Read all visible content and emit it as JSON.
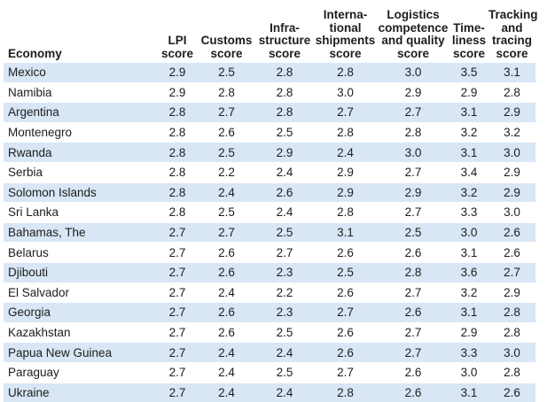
{
  "table": {
    "headers": [
      [
        "Economy"
      ],
      [
        "LPI",
        "score"
      ],
      [
        "Customs",
        "score"
      ],
      [
        "Infra-",
        "structure",
        "score"
      ],
      [
        "Interna-",
        "tional",
        "shipments",
        "score"
      ],
      [
        "Logistics",
        "competence",
        "and quality",
        "score"
      ],
      [
        "Time-",
        "liness",
        "score"
      ],
      [
        "Tracking",
        "and",
        "tracing",
        "score"
      ]
    ],
    "rows": [
      [
        "Mexico",
        "2.9",
        "2.5",
        "2.8",
        "2.8",
        "3.0",
        "3.5",
        "3.1"
      ],
      [
        "Namibia",
        "2.9",
        "2.8",
        "2.8",
        "3.0",
        "2.9",
        "2.9",
        "2.8"
      ],
      [
        "Argentina",
        "2.8",
        "2.7",
        "2.8",
        "2.7",
        "2.7",
        "3.1",
        "2.9"
      ],
      [
        "Montenegro",
        "2.8",
        "2.6",
        "2.5",
        "2.8",
        "2.8",
        "3.2",
        "3.2"
      ],
      [
        "Rwanda",
        "2.8",
        "2.5",
        "2.9",
        "2.4",
        "3.0",
        "3.1",
        "3.0"
      ],
      [
        "Serbia",
        "2.8",
        "2.2",
        "2.4",
        "2.9",
        "2.7",
        "3.4",
        "2.9"
      ],
      [
        "Solomon Islands",
        "2.8",
        "2.4",
        "2.6",
        "2.9",
        "2.9",
        "3.2",
        "2.9"
      ],
      [
        "Sri Lanka",
        "2.8",
        "2.5",
        "2.4",
        "2.8",
        "2.7",
        "3.3",
        "3.0"
      ],
      [
        "Bahamas, The",
        "2.7",
        "2.7",
        "2.5",
        "3.1",
        "2.5",
        "3.0",
        "2.6"
      ],
      [
        "Belarus",
        "2.7",
        "2.6",
        "2.7",
        "2.6",
        "2.6",
        "3.1",
        "2.6"
      ],
      [
        "Djibouti",
        "2.7",
        "2.6",
        "2.3",
        "2.5",
        "2.8",
        "3.6",
        "2.7"
      ],
      [
        "El Salvador",
        "2.7",
        "2.4",
        "2.2",
        "2.6",
        "2.7",
        "3.2",
        "2.9"
      ],
      [
        "Georgia",
        "2.7",
        "2.6",
        "2.3",
        "2.7",
        "2.6",
        "3.1",
        "2.8"
      ],
      [
        "Kazakhstan",
        "2.7",
        "2.6",
        "2.5",
        "2.6",
        "2.7",
        "2.9",
        "2.8"
      ],
      [
        "Papua New Guinea",
        "2.7",
        "2.4",
        "2.4",
        "2.6",
        "2.7",
        "3.3",
        "3.0"
      ],
      [
        "Paraguay",
        "2.7",
        "2.4",
        "2.5",
        "2.7",
        "2.6",
        "3.0",
        "2.8"
      ],
      [
        "Ukraine",
        "2.7",
        "2.4",
        "2.4",
        "2.8",
        "2.6",
        "3.1",
        "2.6"
      ]
    ]
  }
}
